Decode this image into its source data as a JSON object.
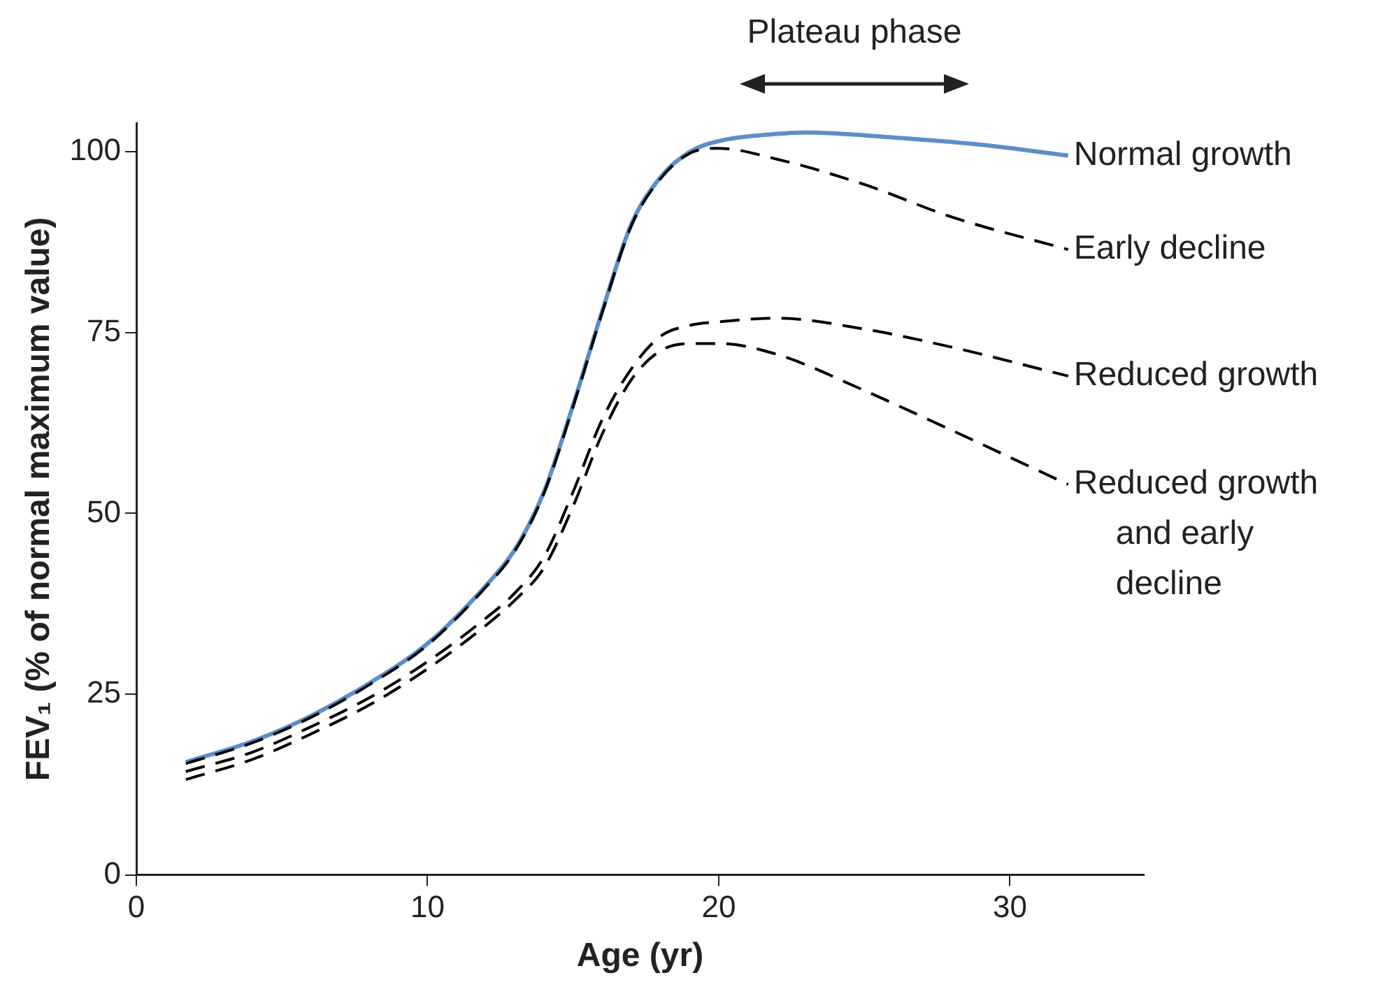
{
  "chart_data": {
    "type": "line",
    "xlabel": "Age (yr)",
    "ylabel": "FEV₁ (% of normal maximum value)",
    "xlim": [
      0,
      34.6
    ],
    "xticks": [
      0,
      10,
      20,
      30
    ],
    "ylim": [
      0,
      104
    ],
    "yticks": [
      0,
      25,
      50,
      75,
      100
    ],
    "grid": false,
    "legend": false,
    "marker": "none",
    "annotations": [
      "Plateau phase"
    ],
    "series": [
      {
        "name": "Normal growth",
        "color": "#5b8fc9",
        "line_style": "solid",
        "x": [
          1.7,
          4,
          6,
          8,
          10,
          12,
          13,
          14,
          15,
          16,
          17,
          18,
          19,
          20,
          22,
          23,
          26,
          29,
          32
        ],
        "values": [
          15.6,
          18.5,
          22,
          26.5,
          32,
          40,
          45,
          53,
          65,
          78,
          90,
          96.5,
          100,
          101.5,
          102.5,
          102.7,
          102,
          101,
          99.5
        ]
      },
      {
        "name": "Early decline",
        "color": "#000000",
        "line_style": "dashed",
        "x": [
          1.7,
          4,
          6,
          8,
          10,
          12,
          13,
          14,
          15,
          16,
          17,
          18,
          19,
          20,
          22,
          25,
          28,
          32
        ],
        "values": [
          15.4,
          18.3,
          21.8,
          26.3,
          31.8,
          39.8,
          44.8,
          52.8,
          64.8,
          77.8,
          89.8,
          96.3,
          99.8,
          100.5,
          99,
          95.5,
          91,
          86.5
        ]
      },
      {
        "name": "Reduced growth",
        "color": "#000000",
        "line_style": "dashed",
        "x": [
          1.7,
          4,
          6,
          8,
          10,
          12,
          13,
          14,
          15,
          16,
          17,
          18,
          19,
          20,
          22,
          25,
          28,
          32
        ],
        "values": [
          14.3,
          17,
          20.5,
          24.5,
          29.5,
          35.5,
          39,
          44,
          53,
          63,
          70,
          74.5,
          76,
          76.5,
          77,
          75.5,
          73,
          69
        ]
      },
      {
        "name": "Reduced growth and early decline",
        "color": "#000000",
        "line_style": "dashed",
        "x": [
          1.7,
          4,
          6,
          8,
          10,
          12,
          13,
          14,
          15,
          16,
          17,
          18,
          19,
          20,
          22,
          25,
          28,
          32
        ],
        "values": [
          13.2,
          16,
          19.5,
          23.5,
          28.5,
          34.5,
          38,
          42.5,
          51,
          61,
          68.5,
          72.5,
          73.5,
          73.5,
          72,
          67,
          61.5,
          54
        ]
      }
    ]
  }
}
